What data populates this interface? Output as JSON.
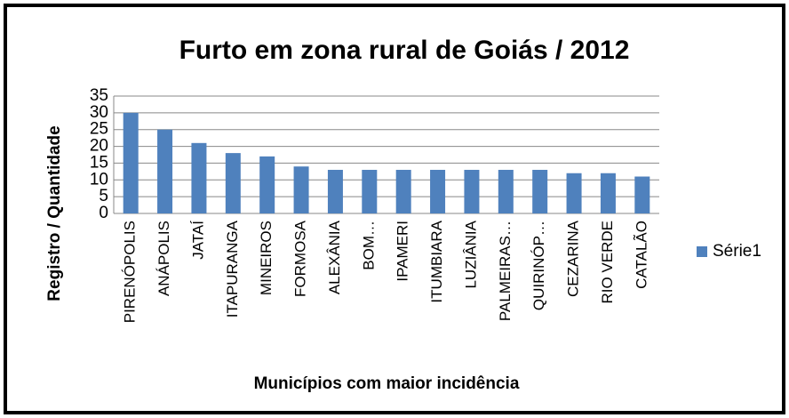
{
  "chart_data": {
    "type": "bar",
    "title": "Furto em zona rural de Goiás / 2012",
    "x_label": "Municípios com maior incidência",
    "y_label": "Registro / Quantidade",
    "categories": [
      "PIRENÓPOLIS",
      "ANÁPOLIS",
      "JATAÍ",
      "ITAPURANGA",
      "MINEIROS",
      "FORMOSA",
      "ALEXÂNIA",
      "BOM…",
      "IPAMERI",
      "ITUMBIARA",
      "LUZIÂNIA",
      "PALMEIRAS…",
      "QUIRINÓP…",
      "CEZARINA",
      "RIO VERDE",
      "CATALÃO"
    ],
    "series": [
      {
        "name": "Série1",
        "color": "#4f81bd",
        "values": [
          30,
          25,
          21,
          18,
          17,
          14,
          13,
          13,
          13,
          13,
          13,
          13,
          13,
          12,
          12,
          11
        ]
      }
    ],
    "ylim": [
      0,
      35
    ],
    "yticks": [
      0,
      5,
      10,
      15,
      20,
      25,
      30,
      35
    ],
    "grid": true,
    "legend": "right"
  }
}
